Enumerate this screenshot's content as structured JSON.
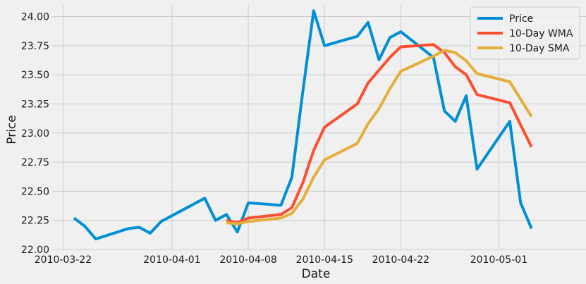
{
  "chart_data": {
    "type": "line",
    "xlabel": "Date",
    "ylabel": "Price",
    "xlim": [
      "2010-03-21",
      "2010-05-09"
    ],
    "ylim": [
      22.0,
      24.1
    ],
    "x_ticks": [
      "2010-03-22",
      "2010-04-01",
      "2010-04-08",
      "2010-04-15",
      "2010-04-22",
      "2010-05-01"
    ],
    "y_ticks": [
      "22.00",
      "22.25",
      "22.50",
      "22.75",
      "23.00",
      "23.25",
      "23.50",
      "23.75",
      "24.00"
    ],
    "grid": true,
    "legend_position": "top-right",
    "series": [
      {
        "name": "Price",
        "color": "#008fd5",
        "points": [
          [
            "2010-03-23",
            22.27
          ],
          [
            "2010-03-24",
            22.2
          ],
          [
            "2010-03-25",
            22.09
          ],
          [
            "2010-03-28",
            22.18
          ],
          [
            "2010-03-29",
            22.19
          ],
          [
            "2010-03-30",
            22.14
          ],
          [
            "2010-03-31",
            22.24
          ],
          [
            "2010-04-04",
            22.44
          ],
          [
            "2010-04-05",
            22.25
          ],
          [
            "2010-04-06",
            22.3
          ],
          [
            "2010-04-07",
            22.15
          ],
          [
            "2010-04-08",
            22.4
          ],
          [
            "2010-04-11",
            22.38
          ],
          [
            "2010-04-12",
            22.62
          ],
          [
            "2010-04-13",
            23.35
          ],
          [
            "2010-04-14",
            24.05
          ],
          [
            "2010-04-15",
            23.75
          ],
          [
            "2010-04-18",
            23.83
          ],
          [
            "2010-04-19",
            23.95
          ],
          [
            "2010-04-20",
            23.63
          ],
          [
            "2010-04-21",
            23.82
          ],
          [
            "2010-04-22",
            23.87
          ],
          [
            "2010-04-25",
            23.65
          ],
          [
            "2010-04-26",
            23.19
          ],
          [
            "2010-04-27",
            23.1
          ],
          [
            "2010-04-28",
            23.32
          ],
          [
            "2010-04-29",
            22.69
          ],
          [
            "2010-05-02",
            23.1
          ],
          [
            "2010-05-03",
            22.4
          ],
          [
            "2010-05-04",
            22.18
          ]
        ]
      },
      {
        "name": "10-Day WMA",
        "color": "#fc4f30",
        "points": [
          [
            "2010-04-06",
            22.25
          ],
          [
            "2010-04-07",
            22.23
          ],
          [
            "2010-04-08",
            22.27
          ],
          [
            "2010-04-11",
            22.3
          ],
          [
            "2010-04-12",
            22.36
          ],
          [
            "2010-04-13",
            22.57
          ],
          [
            "2010-04-14",
            22.85
          ],
          [
            "2010-04-15",
            23.05
          ],
          [
            "2010-04-18",
            23.25
          ],
          [
            "2010-04-19",
            23.43
          ],
          [
            "2010-04-20",
            23.54
          ],
          [
            "2010-04-21",
            23.65
          ],
          [
            "2010-04-22",
            23.74
          ],
          [
            "2010-04-25",
            23.76
          ],
          [
            "2010-04-26",
            23.69
          ],
          [
            "2010-04-27",
            23.57
          ],
          [
            "2010-04-28",
            23.5
          ],
          [
            "2010-04-29",
            23.33
          ],
          [
            "2010-05-02",
            23.26
          ],
          [
            "2010-05-03",
            23.07
          ],
          [
            "2010-05-04",
            22.88
          ]
        ]
      },
      {
        "name": "10-Day SMA",
        "color": "#e5ae38",
        "points": [
          [
            "2010-04-06",
            22.23
          ],
          [
            "2010-04-07",
            22.22
          ],
          [
            "2010-04-08",
            22.24
          ],
          [
            "2010-04-11",
            22.27
          ],
          [
            "2010-04-12",
            22.31
          ],
          [
            "2010-04-13",
            22.43
          ],
          [
            "2010-04-14",
            22.62
          ],
          [
            "2010-04-15",
            22.77
          ],
          [
            "2010-04-18",
            22.91
          ],
          [
            "2010-04-19",
            23.08
          ],
          [
            "2010-04-20",
            23.21
          ],
          [
            "2010-04-21",
            23.38
          ],
          [
            "2010-04-22",
            23.53
          ],
          [
            "2010-04-25",
            23.66
          ],
          [
            "2010-04-26",
            23.71
          ],
          [
            "2010-04-27",
            23.69
          ],
          [
            "2010-04-28",
            23.62
          ],
          [
            "2010-04-29",
            23.51
          ],
          [
            "2010-05-02",
            23.44
          ],
          [
            "2010-05-03",
            23.29
          ],
          [
            "2010-05-04",
            23.14
          ]
        ]
      }
    ]
  }
}
